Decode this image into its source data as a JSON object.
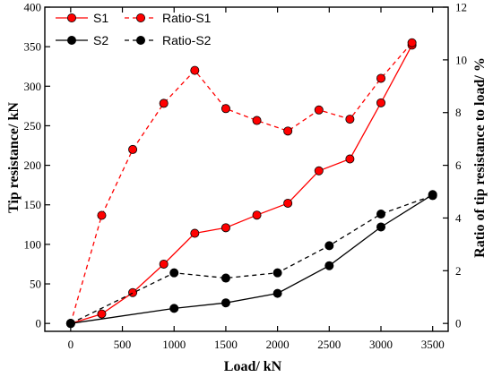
{
  "chart_data": {
    "type": "line",
    "xlabel": "Load/ kN",
    "ylabel": "Tip resistance/ kN",
    "y2label": "Ratio of tip resistance to load/ %",
    "xlim": [
      -250,
      3650
    ],
    "ylim": [
      -10,
      400
    ],
    "y2lim": [
      -0.3,
      12
    ],
    "x_ticks": [
      0,
      500,
      1000,
      1500,
      2000,
      2500,
      3000,
      3500
    ],
    "y_ticks": [
      0,
      50,
      100,
      150,
      200,
      250,
      300,
      350,
      400
    ],
    "y2_ticks": [
      0,
      2,
      4,
      6,
      8,
      10,
      12
    ],
    "legend_position": "top-left",
    "grid": false,
    "series": [
      {
        "name": "S1",
        "axis": "left",
        "color": "#ff0000",
        "dash": "solid",
        "x": [
          0,
          300,
          600,
          900,
          1200,
          1500,
          1800,
          2100,
          2400,
          2700,
          3000,
          3300
        ],
        "values": [
          0,
          12,
          39,
          75,
          114,
          121,
          137,
          152,
          193,
          208,
          279,
          352
        ]
      },
      {
        "name": "Ratio-S1",
        "axis": "right",
        "color": "#ff0000",
        "dash": "dashed",
        "x": [
          0,
          300,
          600,
          900,
          1200,
          1500,
          1800,
          2100,
          2400,
          2700,
          3000,
          3300
        ],
        "values": [
          0,
          4.1,
          6.6,
          8.35,
          9.6,
          8.15,
          7.7,
          7.3,
          8.1,
          7.75,
          9.3,
          10.65
        ]
      },
      {
        "name": "S2",
        "axis": "left",
        "color": "#000000",
        "dash": "solid",
        "x": [
          0,
          1000,
          1500,
          2000,
          2500,
          3000,
          3500
        ],
        "values": [
          0,
          19,
          26,
          38,
          73,
          122,
          163
        ]
      },
      {
        "name": "Ratio-S2",
        "axis": "right",
        "color": "#000000",
        "dash": "dashed",
        "x": [
          0,
          1000,
          1500,
          2000,
          2500,
          3000,
          3500
        ],
        "values": [
          0,
          1.92,
          1.72,
          1.92,
          2.95,
          4.15,
          4.85
        ]
      }
    ]
  }
}
